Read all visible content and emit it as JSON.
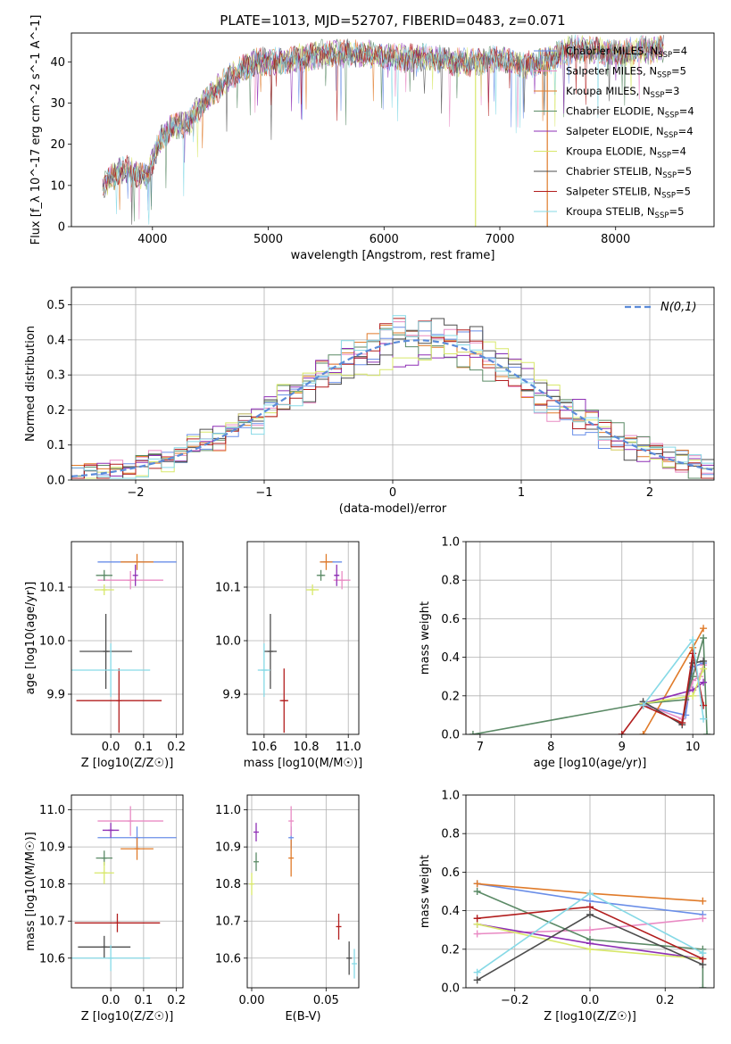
{
  "figure_title": "PLATE=1013, MJD=52707, FIBERID=0483, z=0.071",
  "colors": {
    "Chabrier MILES": "#6a8ee8",
    "Salpeter MILES": "#e98bc4",
    "Kroupa MILES": "#e07b2a",
    "Chabrier ELODIE": "#5b8a66",
    "Salpeter ELODIE": "#8e2fb5",
    "Kroupa ELODIE": "#d8e86a",
    "Chabrier STELIB": "#4d4d4d",
    "Salpeter STELIB": "#b21e1e",
    "Kroupa STELIB": "#86d9e6"
  },
  "chart_data": [
    {
      "id": "spectrum",
      "type": "line",
      "xlabel": "wavelength [Angstrom, rest frame]",
      "ylabel": "Flux [f_λ 10^-17 erg cm^-2 s^-1 A^-1]",
      "xlim": [
        3300,
        8850
      ],
      "ylim": [
        0,
        47
      ],
      "xticks": [
        4000,
        5000,
        6000,
        7000,
        8000
      ],
      "yticks": [
        0,
        10,
        20,
        30,
        40
      ],
      "grid": false,
      "legend": "top-right",
      "legend_entries": [
        {
          "name": "Chabrier MILES",
          "nssp": "4"
        },
        {
          "name": "Salpeter MILES",
          "nssp": "5"
        },
        {
          "name": "Kroupa MILES",
          "nssp": "3"
        },
        {
          "name": "Chabrier ELODIE",
          "nssp": "4"
        },
        {
          "name": "Salpeter ELODIE",
          "nssp": "4"
        },
        {
          "name": "Kroupa ELODIE",
          "nssp": "4"
        },
        {
          "name": "Chabrier STELIB",
          "nssp": "5"
        },
        {
          "name": "Salpeter STELIB",
          "nssp": "5"
        },
        {
          "name": "Kroupa STELIB",
          "nssp": "5"
        }
      ],
      "data_envelope": {
        "x": [
          3570,
          3650,
          3750,
          3850,
          3950,
          4050,
          4150,
          4300,
          4500,
          4700,
          4900,
          5100,
          5300,
          5500,
          5800,
          6100,
          6400,
          6600,
          6800,
          7000,
          7200,
          7400,
          7600,
          7800,
          8000,
          8200,
          8400
        ],
        "y": [
          10,
          12,
          14,
          13,
          12,
          20,
          24,
          25,
          32,
          37,
          40,
          40,
          41,
          42,
          42,
          41,
          41,
          40,
          40,
          41,
          39,
          40,
          43,
          43,
          42,
          43,
          43
        ]
      }
    },
    {
      "id": "residuals",
      "type": "histogram",
      "xlabel": "(data-model)/error",
      "ylabel": "Normed distribution",
      "xlim": [
        -2.5,
        2.5
      ],
      "ylim": [
        0,
        0.55
      ],
      "xticks": [
        -2,
        -1,
        0,
        1,
        2
      ],
      "yticks": [
        0.0,
        0.1,
        0.2,
        0.3,
        0.4,
        0.5
      ],
      "grid": true,
      "legend": "top-right",
      "reference_curve": {
        "name": "N(0,1)",
        "mean": 0.2,
        "sigma": 1.0
      },
      "bin_width": 0.1
    },
    {
      "id": "age_vs_Z",
      "type": "errorbar",
      "xlabel": "Z [log10(Z/Z☉)]",
      "ylabel": "age [log10(age/yr)]",
      "xlim": [
        -0.12,
        0.22
      ],
      "ylim": [
        9.825,
        10.185
      ],
      "xticks": [
        0.0,
        0.1,
        0.2
      ],
      "yticks": [
        9.9,
        10.0,
        10.1
      ],
      "grid": true,
      "points": [
        {
          "model": "Chabrier MILES",
          "x": 0.08,
          "y": 10.147,
          "xerr": 0.12,
          "yerr": 0.0
        },
        {
          "model": "Salpeter MILES",
          "x": 0.06,
          "y": 10.113,
          "xerr": 0.1,
          "yerr": 0.017
        },
        {
          "model": "Kroupa MILES",
          "x": 0.08,
          "y": 10.147,
          "xerr": 0.05,
          "yerr": 0.015
        },
        {
          "model": "Chabrier ELODIE",
          "x": -0.02,
          "y": 10.122,
          "xerr": 0.025,
          "yerr": 0.01
        },
        {
          "model": "Salpeter ELODIE",
          "x": 0.075,
          "y": 10.122,
          "xerr": 0.0,
          "yerr": 0.02
        },
        {
          "model": "Kroupa ELODIE",
          "x": -0.02,
          "y": 10.095,
          "xerr": 0.03,
          "yerr": 0.01
        },
        {
          "model": "Chabrier STELIB",
          "x": -0.015,
          "y": 9.98,
          "xerr": 0.08,
          "yerr": 0.07
        },
        {
          "model": "Salpeter STELIB",
          "x": 0.025,
          "y": 9.888,
          "xerr": 0.13,
          "yerr": 0.06
        },
        {
          "model": "Kroupa STELIB",
          "x": 0.0,
          "y": 9.945,
          "xerr": 0.12,
          "yerr": 0.05
        }
      ]
    },
    {
      "id": "age_vs_mass",
      "type": "errorbar",
      "xlabel": "mass [log10(M/M☉)]",
      "ylabel": "",
      "xlim": [
        10.52,
        11.05
      ],
      "ylim": [
        9.825,
        10.185
      ],
      "xticks": [
        10.6,
        10.8,
        11.0
      ],
      "yticks": [
        9.9,
        10.0,
        10.1
      ],
      "grid": true,
      "points": [
        {
          "model": "Chabrier MILES",
          "x": 10.92,
          "y": 10.147,
          "xerr": 0.05,
          "yerr": 0.0
        },
        {
          "model": "Salpeter MILES",
          "x": 10.97,
          "y": 10.113,
          "xerr": 0.04,
          "yerr": 0.017
        },
        {
          "model": "Kroupa MILES",
          "x": 10.895,
          "y": 10.147,
          "xerr": 0.03,
          "yerr": 0.015
        },
        {
          "model": "Chabrier ELODIE",
          "x": 10.87,
          "y": 10.122,
          "xerr": 0.02,
          "yerr": 0.01
        },
        {
          "model": "Salpeter ELODIE",
          "x": 10.945,
          "y": 10.122,
          "xerr": 0.01,
          "yerr": 0.02
        },
        {
          "model": "Kroupa ELODIE",
          "x": 10.83,
          "y": 10.095,
          "xerr": 0.03,
          "yerr": 0.01
        },
        {
          "model": "Chabrier STELIB",
          "x": 10.63,
          "y": 9.98,
          "xerr": 0.03,
          "yerr": 0.07
        },
        {
          "model": "Salpeter STELIB",
          "x": 10.695,
          "y": 9.888,
          "xerr": 0.02,
          "yerr": 0.06
        },
        {
          "model": "Kroupa STELIB",
          "x": 10.6,
          "y": 9.945,
          "xerr": 0.03,
          "yerr": 0.05
        }
      ]
    },
    {
      "id": "weight_vs_age",
      "type": "line",
      "xlabel": "age [log10(age/yr)]",
      "ylabel": "mass weight",
      "xlim": [
        6.8,
        10.3
      ],
      "ylim": [
        0.0,
        1.0
      ],
      "xticks": [
        7,
        8,
        9,
        10
      ],
      "yticks": [
        0.0,
        0.2,
        0.4,
        0.6,
        0.8,
        1.0
      ],
      "grid": true,
      "series": [
        {
          "model": "Chabrier MILES",
          "x": [
            9.3,
            9.9,
            10.0,
            10.15
          ],
          "y": [
            0.15,
            0.1,
            0.35,
            0.37
          ]
        },
        {
          "model": "Salpeter MILES",
          "x": [
            9.3,
            9.85,
            10.0,
            10.1,
            10.15
          ],
          "y": [
            0.16,
            0.08,
            0.28,
            0.3,
            0.36
          ]
        },
        {
          "model": "Kroupa MILES",
          "x": [
            9.3,
            10.0,
            10.15
          ],
          "y": [
            0.0,
            0.45,
            0.55
          ]
        },
        {
          "model": "Chabrier ELODIE",
          "x": [
            6.9,
            9.3,
            9.9,
            10.0,
            10.15,
            10.2
          ],
          "y": [
            0.0,
            0.16,
            0.18,
            0.3,
            0.5,
            0.0
          ]
        },
        {
          "model": "Salpeter ELODIE",
          "x": [
            9.3,
            10.0,
            10.15
          ],
          "y": [
            0.16,
            0.23,
            0.27
          ]
        },
        {
          "model": "Kroupa ELODIE",
          "x": [
            9.3,
            10.0,
            10.15
          ],
          "y": [
            0.16,
            0.2,
            0.34
          ]
        },
        {
          "model": "Chabrier STELIB",
          "x": [
            9.3,
            9.85,
            10.0,
            10.15
          ],
          "y": [
            0.17,
            0.05,
            0.37,
            0.38
          ]
        },
        {
          "model": "Salpeter STELIB",
          "x": [
            9.0,
            9.3,
            9.85,
            10.0,
            10.15
          ],
          "y": [
            0.0,
            0.15,
            0.06,
            0.42,
            0.15
          ]
        },
        {
          "model": "Kroupa STELIB",
          "x": [
            9.3,
            10.0,
            10.15
          ],
          "y": [
            0.15,
            0.49,
            0.08
          ]
        }
      ]
    },
    {
      "id": "mass_vs_Z",
      "type": "errorbar",
      "xlabel": "Z [log10(Z/Z☉)]",
      "ylabel": "mass [log10(M/M☉)]",
      "xlim": [
        -0.12,
        0.22
      ],
      "ylim": [
        10.52,
        11.04
      ],
      "xticks": [
        0.0,
        0.1,
        0.2
      ],
      "yticks": [
        10.6,
        10.7,
        10.8,
        10.9,
        11.0
      ],
      "grid": true,
      "points": [
        {
          "model": "Chabrier MILES",
          "x": 0.08,
          "y": 10.925,
          "xerr": 0.12,
          "yerr": 0.03
        },
        {
          "model": "Salpeter MILES",
          "x": 0.06,
          "y": 10.97,
          "xerr": 0.1,
          "yerr": 0.04
        },
        {
          "model": "Kroupa MILES",
          "x": 0.08,
          "y": 10.895,
          "xerr": 0.05,
          "yerr": 0.03
        },
        {
          "model": "Chabrier ELODIE",
          "x": -0.02,
          "y": 10.87,
          "xerr": 0.025,
          "yerr": 0.02
        },
        {
          "model": "Salpeter ELODIE",
          "x": 0.0,
          "y": 10.945,
          "xerr": 0.025,
          "yerr": 0.02
        },
        {
          "model": "Kroupa ELODIE",
          "x": -0.02,
          "y": 10.83,
          "xerr": 0.03,
          "yerr": 0.03
        },
        {
          "model": "Chabrier STELIB",
          "x": -0.02,
          "y": 10.63,
          "xerr": 0.08,
          "yerr": 0.03
        },
        {
          "model": "Salpeter STELIB",
          "x": 0.02,
          "y": 10.695,
          "xerr": 0.13,
          "yerr": 0.025
        },
        {
          "model": "Kroupa STELIB",
          "x": 0.0,
          "y": 10.6,
          "xerr": 0.12,
          "yerr": 0.035
        }
      ]
    },
    {
      "id": "mass_vs_ebv",
      "type": "errorbar",
      "xlabel": "E(B-V)",
      "ylabel": "",
      "xlim": [
        -0.003,
        0.072
      ],
      "ylim": [
        10.52,
        11.04
      ],
      "xticks": [
        0.0,
        0.05
      ],
      "yticks": [
        10.6,
        10.7,
        10.8,
        10.9,
        11.0
      ],
      "grid": true,
      "points": [
        {
          "model": "Chabrier MILES",
          "x": 0.0265,
          "y": 10.925,
          "xerr": 0.0,
          "yerr": 0.03
        },
        {
          "model": "Salpeter MILES",
          "x": 0.0265,
          "y": 10.97,
          "xerr": 0.0,
          "yerr": 0.04
        },
        {
          "model": "Kroupa MILES",
          "x": 0.0265,
          "y": 10.87,
          "xerr": 0.0,
          "yerr": 0.05
        },
        {
          "model": "Chabrier ELODIE",
          "x": 0.003,
          "y": 10.86,
          "xerr": 0.0,
          "yerr": 0.025
        },
        {
          "model": "Salpeter ELODIE",
          "x": 0.003,
          "y": 10.94,
          "xerr": 0.0,
          "yerr": 0.025
        },
        {
          "model": "Kroupa ELODIE",
          "x": 0.0,
          "y": 10.8,
          "xerr": 0.0,
          "yerr": 0.03
        },
        {
          "model": "Chabrier STELIB",
          "x": 0.0655,
          "y": 10.6,
          "xerr": 0.0,
          "yerr": 0.045
        },
        {
          "model": "Salpeter STELIB",
          "x": 0.0585,
          "y": 10.685,
          "xerr": 0.0,
          "yerr": 0.035
        },
        {
          "model": "Kroupa STELIB",
          "x": 0.069,
          "y": 10.585,
          "xerr": 0.0,
          "yerr": 0.04
        }
      ]
    },
    {
      "id": "weight_vs_Z",
      "type": "line",
      "xlabel": "Z [log10(Z/Z☉)]",
      "ylabel": "mass weight",
      "xlim": [
        -0.33,
        0.33
      ],
      "ylim": [
        0.0,
        1.0
      ],
      "xticks": [
        -0.2,
        0.0,
        0.2
      ],
      "yticks": [
        0.0,
        0.2,
        0.4,
        0.6,
        0.8,
        1.0
      ],
      "grid": true,
      "series": [
        {
          "model": "Chabrier MILES",
          "x": [
            -0.3,
            0.0,
            0.3
          ],
          "y": [
            0.54,
            0.45,
            0.38
          ]
        },
        {
          "model": "Salpeter MILES",
          "x": [
            -0.3,
            0.0,
            0.3
          ],
          "y": [
            0.28,
            0.3,
            0.36
          ]
        },
        {
          "model": "Kroupa MILES",
          "x": [
            -0.3,
            0.0,
            0.3
          ],
          "y": [
            0.54,
            0.49,
            0.45
          ]
        },
        {
          "model": "Chabrier ELODIE",
          "x": [
            -0.3,
            0.0,
            0.3,
            0.3
          ],
          "y": [
            0.5,
            0.25,
            0.2,
            0.0
          ]
        },
        {
          "model": "Salpeter ELODIE",
          "x": [
            -0.3,
            0.0,
            0.3
          ],
          "y": [
            0.33,
            0.23,
            0.15
          ]
        },
        {
          "model": "Kroupa ELODIE",
          "x": [
            -0.3,
            0.0,
            0.3
          ],
          "y": [
            0.33,
            0.2,
            0.15
          ]
        },
        {
          "model": "Chabrier STELIB",
          "x": [
            -0.3,
            0.0,
            0.3
          ],
          "y": [
            0.04,
            0.38,
            0.12
          ]
        },
        {
          "model": "Salpeter STELIB",
          "x": [
            -0.3,
            0.0,
            0.3
          ],
          "y": [
            0.36,
            0.42,
            0.15
          ]
        },
        {
          "model": "Kroupa STELIB",
          "x": [
            -0.3,
            0.0,
            0.3
          ],
          "y": [
            0.08,
            0.49,
            0.18
          ]
        }
      ]
    }
  ]
}
